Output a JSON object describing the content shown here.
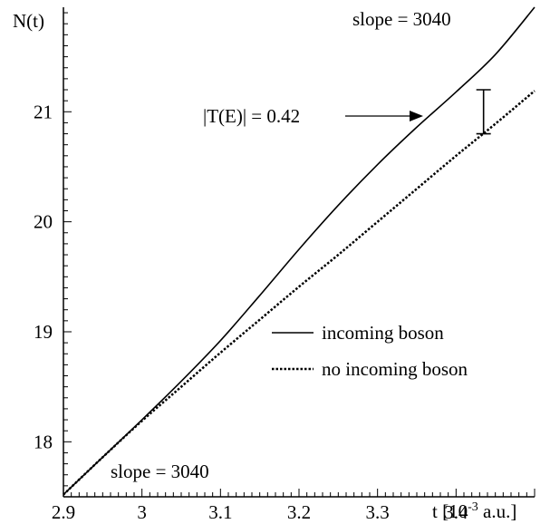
{
  "chart_data": {
    "type": "line",
    "ylabel": "N(t)",
    "xlabel_main": "t [10",
    "xlabel_exp": "-3",
    "xlabel_tail": " a.u.]",
    "xlim": [
      2.9,
      3.5
    ],
    "ylim": [
      17.5,
      21.95
    ],
    "x_ticks": [
      2.9,
      3.0,
      3.1,
      3.2,
      3.3,
      3.4
    ],
    "x_tick_labels": [
      "2.9",
      "3",
      "3.1",
      "3.2",
      "3.3",
      "3.4"
    ],
    "y_ticks": [
      18,
      19,
      20,
      21
    ],
    "y_tick_labels": [
      "18",
      "19",
      "20",
      "21"
    ],
    "grid": false,
    "legend_position": "right",
    "series": [
      {
        "name": "incoming boson",
        "style": "solid",
        "x": [
          2.9,
          2.95,
          3.0,
          3.05,
          3.1,
          3.15,
          3.2,
          3.25,
          3.3,
          3.35,
          3.4,
          3.45,
          3.5
        ],
        "y": [
          17.52,
          17.86,
          18.2,
          18.55,
          18.92,
          19.33,
          19.75,
          20.15,
          20.52,
          20.86,
          21.18,
          21.52,
          21.95
        ]
      },
      {
        "name": "no incoming boson",
        "style": "dotted",
        "x": [
          2.9,
          2.95,
          3.0,
          3.05,
          3.1,
          3.15,
          3.2,
          3.25,
          3.3,
          3.35,
          3.4,
          3.45,
          3.5
        ],
        "y": [
          17.52,
          17.86,
          18.19,
          18.5,
          18.81,
          19.11,
          19.41,
          19.7,
          20.0,
          20.3,
          20.6,
          20.89,
          21.19
        ]
      }
    ],
    "annotations": {
      "slope_top": "slope = 3040",
      "slope_bottom": "slope = 3040",
      "transmission": "|T(E)| = 0.42",
      "errorbar_x": 3.435,
      "errorbar_y_low": 20.8,
      "errorbar_y_high": 21.2
    }
  }
}
